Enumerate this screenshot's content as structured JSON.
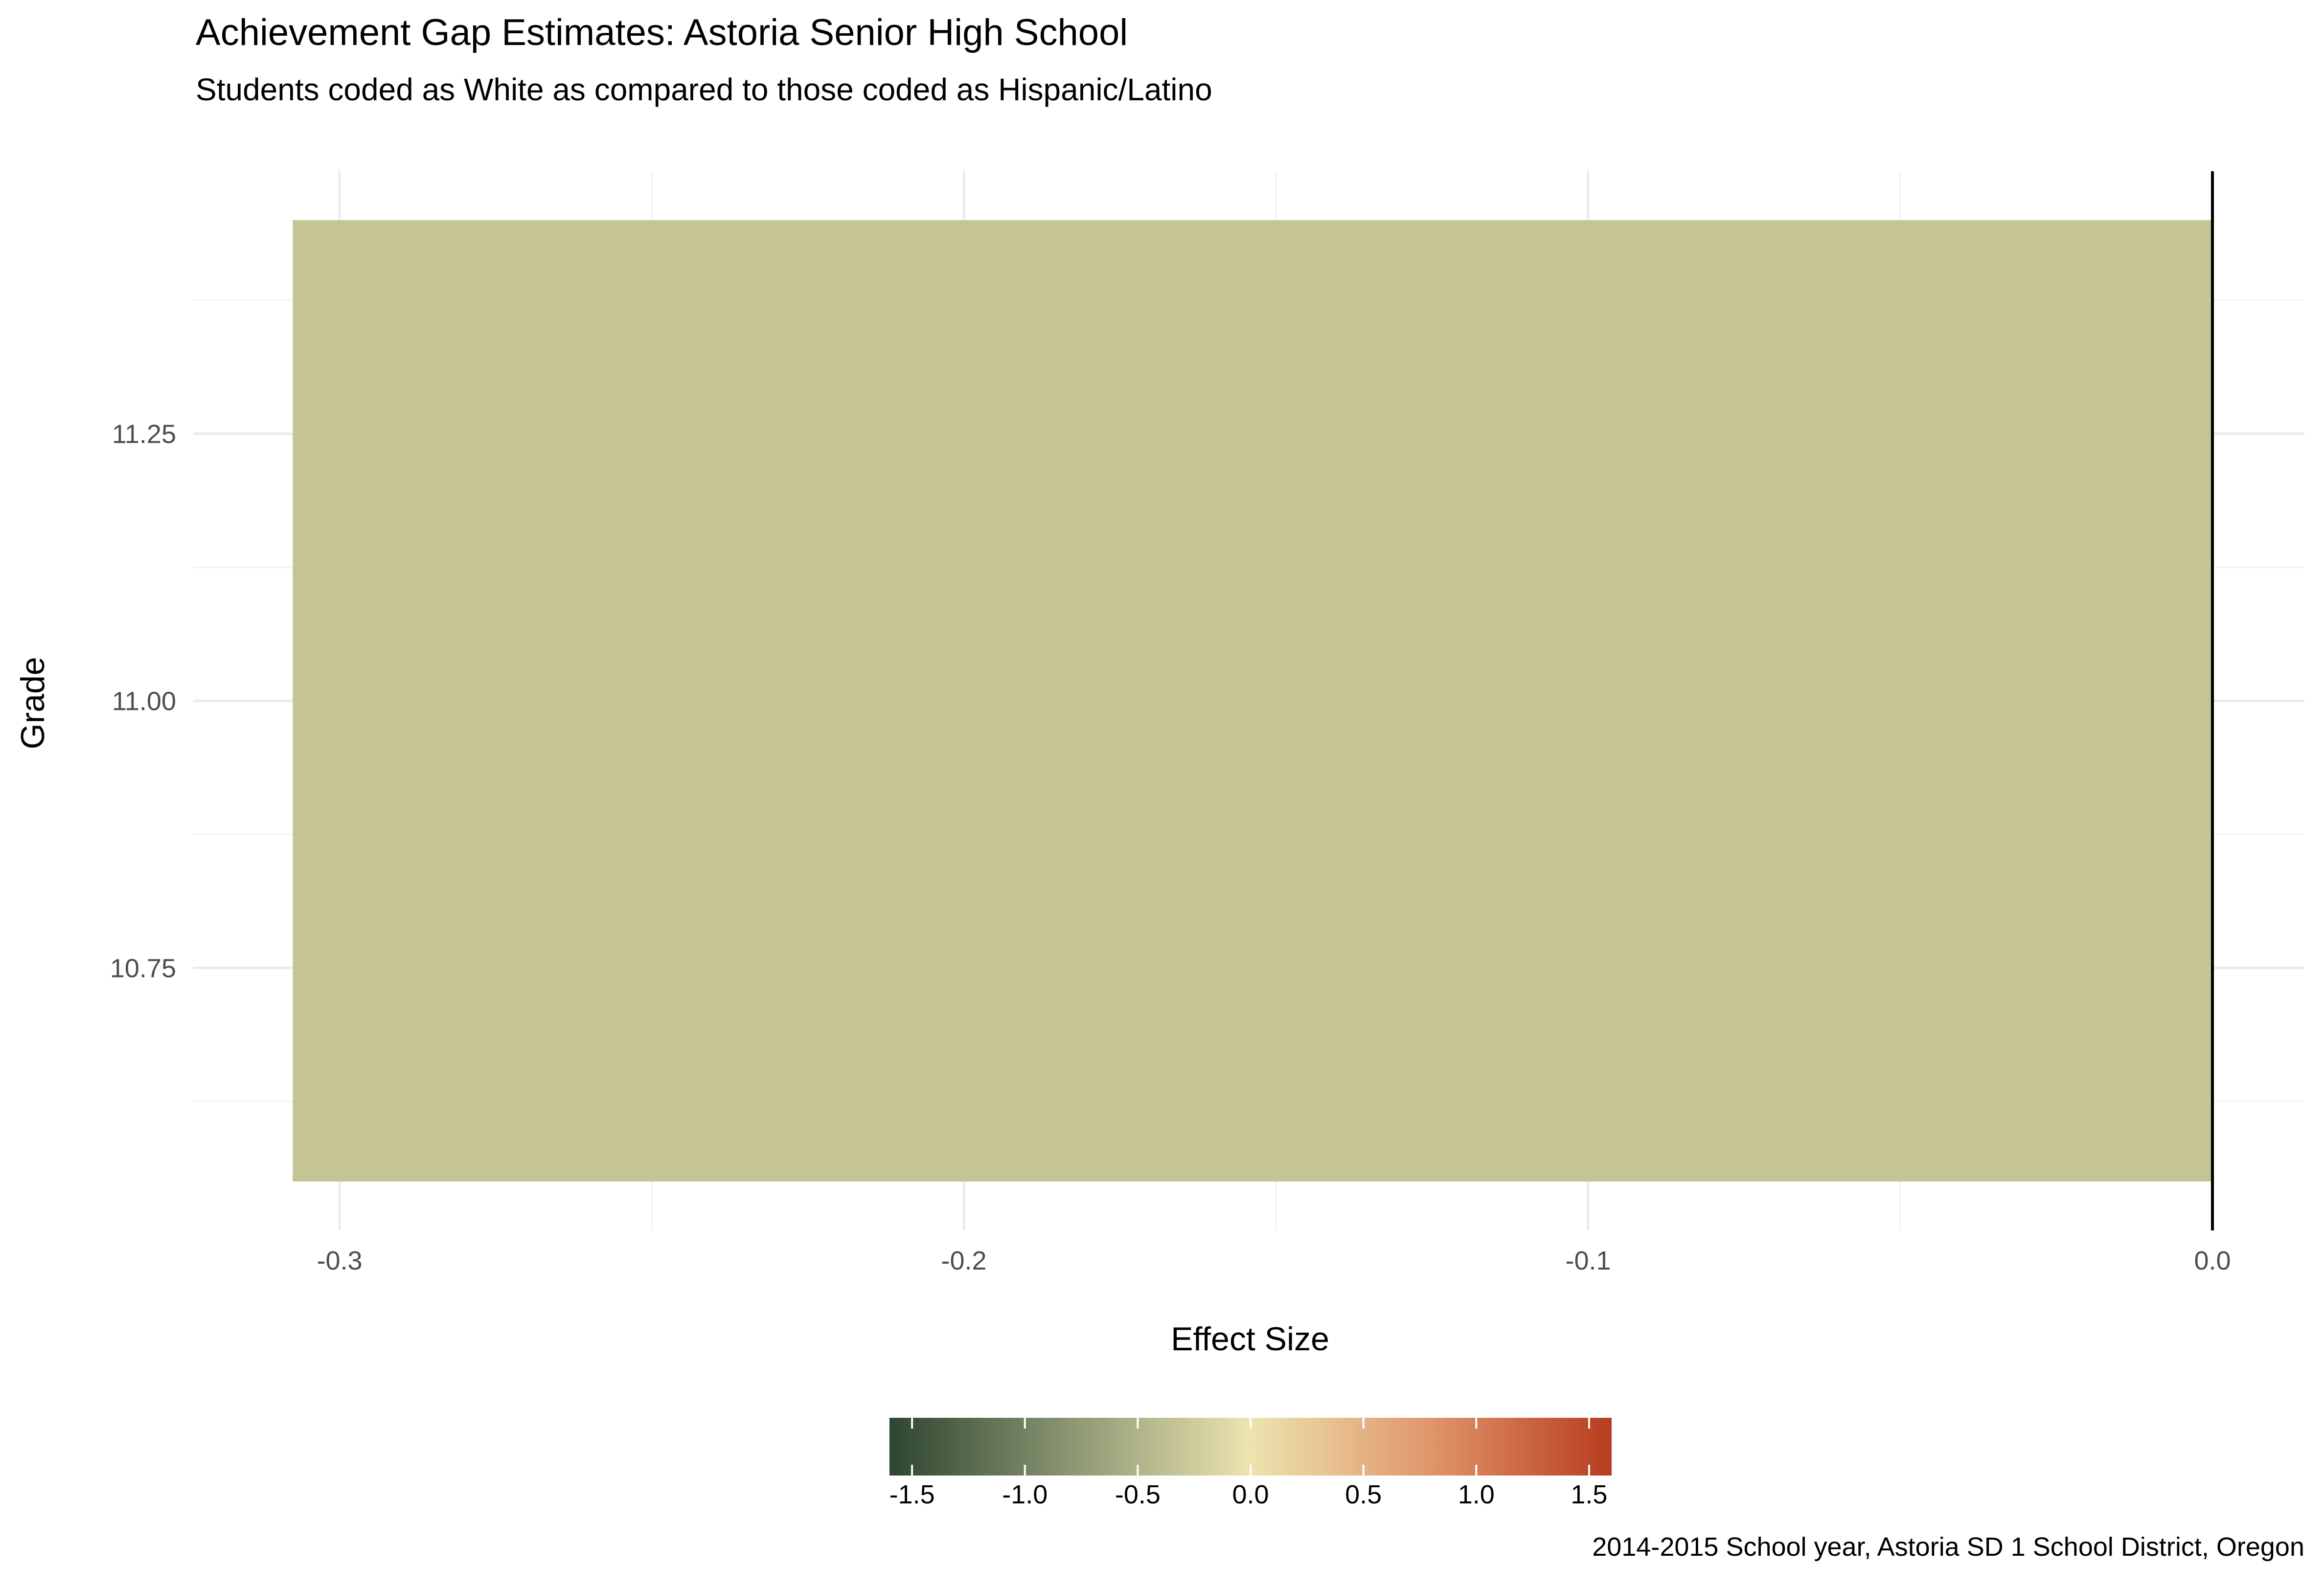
{
  "chart_data": {
    "type": "bar",
    "orientation": "horizontal",
    "title": "Achievement Gap Estimates: Astoria Senior High School",
    "subtitle": "Students coded as White as compared to those coded as Hispanic/Latino",
    "xlabel": "Effect Size",
    "ylabel": "Grade",
    "caption": "2014-2015 School year, Astoria SD 1 School District, Oregon",
    "xlim": [
      -0.3075,
      0.0
    ],
    "ylim": [
      10.55,
      11.45
    ],
    "x_ticks": [
      -0.3,
      -0.2,
      -0.1,
      0.0
    ],
    "x_tick_labels": [
      "-0.3",
      "-0.2",
      "-0.1",
      "0.0"
    ],
    "y_ticks": [
      10.75,
      11.0,
      11.25
    ],
    "y_tick_labels": [
      "10.75",
      "11.00",
      "11.25"
    ],
    "grid": true,
    "reference_line": 0.0,
    "bars": [
      {
        "grade": 11,
        "value": -0.3075,
        "color": "#c5c494"
      }
    ],
    "legend": {
      "position": "bottom",
      "type": "colorbar",
      "range": [
        -1.6,
        1.6
      ],
      "ticks": [
        -1.5,
        -1.0,
        -0.5,
        0.0,
        0.5,
        1.0,
        1.5
      ],
      "tick_labels": [
        "-1.5",
        "-1.0",
        "-0.5",
        "0.0",
        "0.5",
        "1.0",
        "1.5"
      ],
      "colors": [
        "#2e4530",
        "#8b9672",
        "#ede4b0",
        "#e0956a",
        "#b83c20"
      ]
    }
  }
}
